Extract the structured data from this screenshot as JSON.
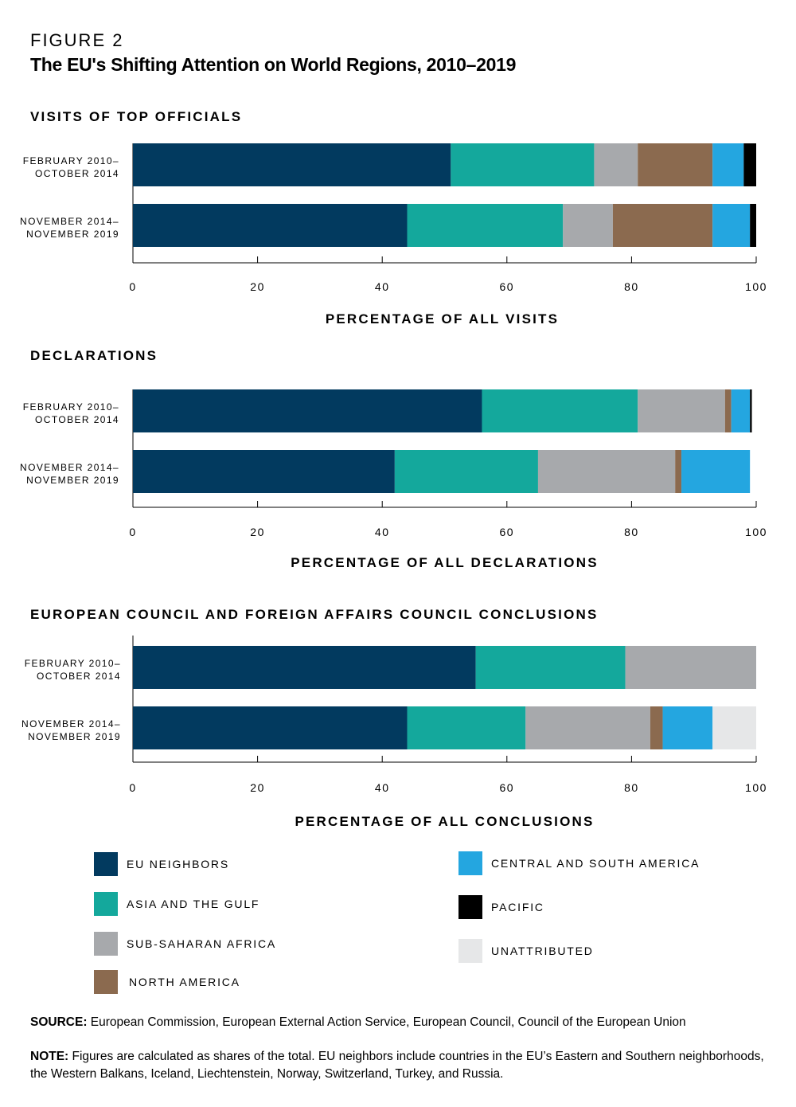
{
  "figure_label": "FIGURE 2",
  "title": "The EU's Shifting Attention on World Regions, 2010–2019",
  "colors": {
    "EU NEIGHBORS": "#023a5f",
    "ASIA AND THE GULF": "#14a89c",
    "SUB-SAHARAN AFRICA": "#a7a9ac",
    "NORTH AMERICA": "#8b6a4f",
    "CENTRAL AND SOUTH AMERICA": "#24a6e0",
    "PACIFIC": "#000000",
    "UNATTRIBUTED": "#e6e7e8"
  },
  "chart_data": [
    {
      "type": "bar",
      "stacked": true,
      "orientation": "horizontal",
      "title": "VISITS OF TOP OFFICIALS",
      "xlabel": "PERCENTAGE OF ALL VISITS",
      "xlim": [
        0,
        100
      ],
      "xticks": [
        "0",
        "20",
        "40",
        "60",
        "80",
        "100"
      ],
      "categories": [
        [
          "FEBRUARY 2010–",
          "OCTOBER 2014"
        ],
        [
          "NOVEMBER 2014–",
          "NOVEMBER 2019"
        ]
      ],
      "series": [
        {
          "name": "EU NEIGHBORS",
          "values": [
            51,
            44
          ]
        },
        {
          "name": "ASIA AND THE GULF",
          "values": [
            23,
            25
          ]
        },
        {
          "name": "SUB-SAHARAN AFRICA",
          "values": [
            7,
            8
          ]
        },
        {
          "name": "NORTH AMERICA",
          "values": [
            12,
            16
          ]
        },
        {
          "name": "CENTRAL AND SOUTH AMERICA",
          "values": [
            5,
            6
          ]
        },
        {
          "name": "PACIFIC",
          "values": [
            2,
            1
          ]
        },
        {
          "name": "UNATTRIBUTED",
          "values": [
            0,
            0
          ]
        }
      ]
    },
    {
      "type": "bar",
      "stacked": true,
      "orientation": "horizontal",
      "title": "DECLARATIONS",
      "xlabel": "PERCENTAGE OF ALL DECLARATIONS",
      "xlim": [
        0,
        100
      ],
      "xticks": [
        "0",
        "20",
        "40",
        "60",
        "80",
        "100"
      ],
      "categories": [
        [
          "FEBRUARY 2010–",
          "OCTOBER 2014"
        ],
        [
          "NOVEMBER 2014–",
          "NOVEMBER 2019"
        ]
      ],
      "series": [
        {
          "name": "EU NEIGHBORS",
          "values": [
            56,
            42
          ]
        },
        {
          "name": "ASIA AND THE GULF",
          "values": [
            25,
            23
          ]
        },
        {
          "name": "SUB-SAHARAN AFRICA",
          "values": [
            14,
            22
          ]
        },
        {
          "name": "NORTH AMERICA",
          "values": [
            1,
            1
          ]
        },
        {
          "name": "CENTRAL AND SOUTH AMERICA",
          "values": [
            3,
            11
          ]
        },
        {
          "name": "PACIFIC",
          "values": [
            0.3,
            0
          ]
        },
        {
          "name": "UNATTRIBUTED",
          "values": [
            0,
            0
          ]
        }
      ]
    },
    {
      "type": "bar",
      "stacked": true,
      "orientation": "horizontal",
      "title": "EUROPEAN COUNCIL AND FOREIGN AFFAIRS COUNCIL CONCLUSIONS",
      "xlabel": "PERCENTAGE OF ALL CONCLUSIONS",
      "xlim": [
        0,
        100
      ],
      "xticks": [
        "0",
        "20",
        "40",
        "60",
        "80",
        "100"
      ],
      "categories": [
        [
          "FEBRUARY 2010–",
          "OCTOBER 2014"
        ],
        [
          "NOVEMBER 2014–",
          "NOVEMBER 2019"
        ]
      ],
      "series": [
        {
          "name": "EU NEIGHBORS",
          "values": [
            55,
            44
          ]
        },
        {
          "name": "ASIA AND THE GULF",
          "values": [
            24,
            19
          ]
        },
        {
          "name": "SUB-SAHARAN AFRICA",
          "values": [
            21,
            20
          ]
        },
        {
          "name": "NORTH AMERICA",
          "values": [
            0,
            2
          ]
        },
        {
          "name": "CENTRAL AND SOUTH AMERICA",
          "values": [
            0,
            8
          ]
        },
        {
          "name": "PACIFIC",
          "values": [
            0,
            0
          ]
        },
        {
          "name": "UNATTRIBUTED",
          "values": [
            0,
            7
          ]
        }
      ]
    }
  ],
  "legend": [
    "EU NEIGHBORS",
    "ASIA AND THE GULF",
    "SUB-SAHARAN AFRICA",
    "NORTH AMERICA",
    "CENTRAL AND SOUTH AMERICA",
    "PACIFIC",
    "UNATTRIBUTED"
  ],
  "source": {
    "label": "SOURCE:",
    "text": " European Commission, European External Action Service, European Council, Council of the European Union"
  },
  "note": {
    "label": "NOTE:",
    "text": " Figures are calculated as shares of the total. EU neighbors include countries in the EU’s Eastern and Southern neighborhoods, the Western Balkans, Iceland, Liechtenstein, Norway, Switzerland, Turkey, and Russia."
  }
}
